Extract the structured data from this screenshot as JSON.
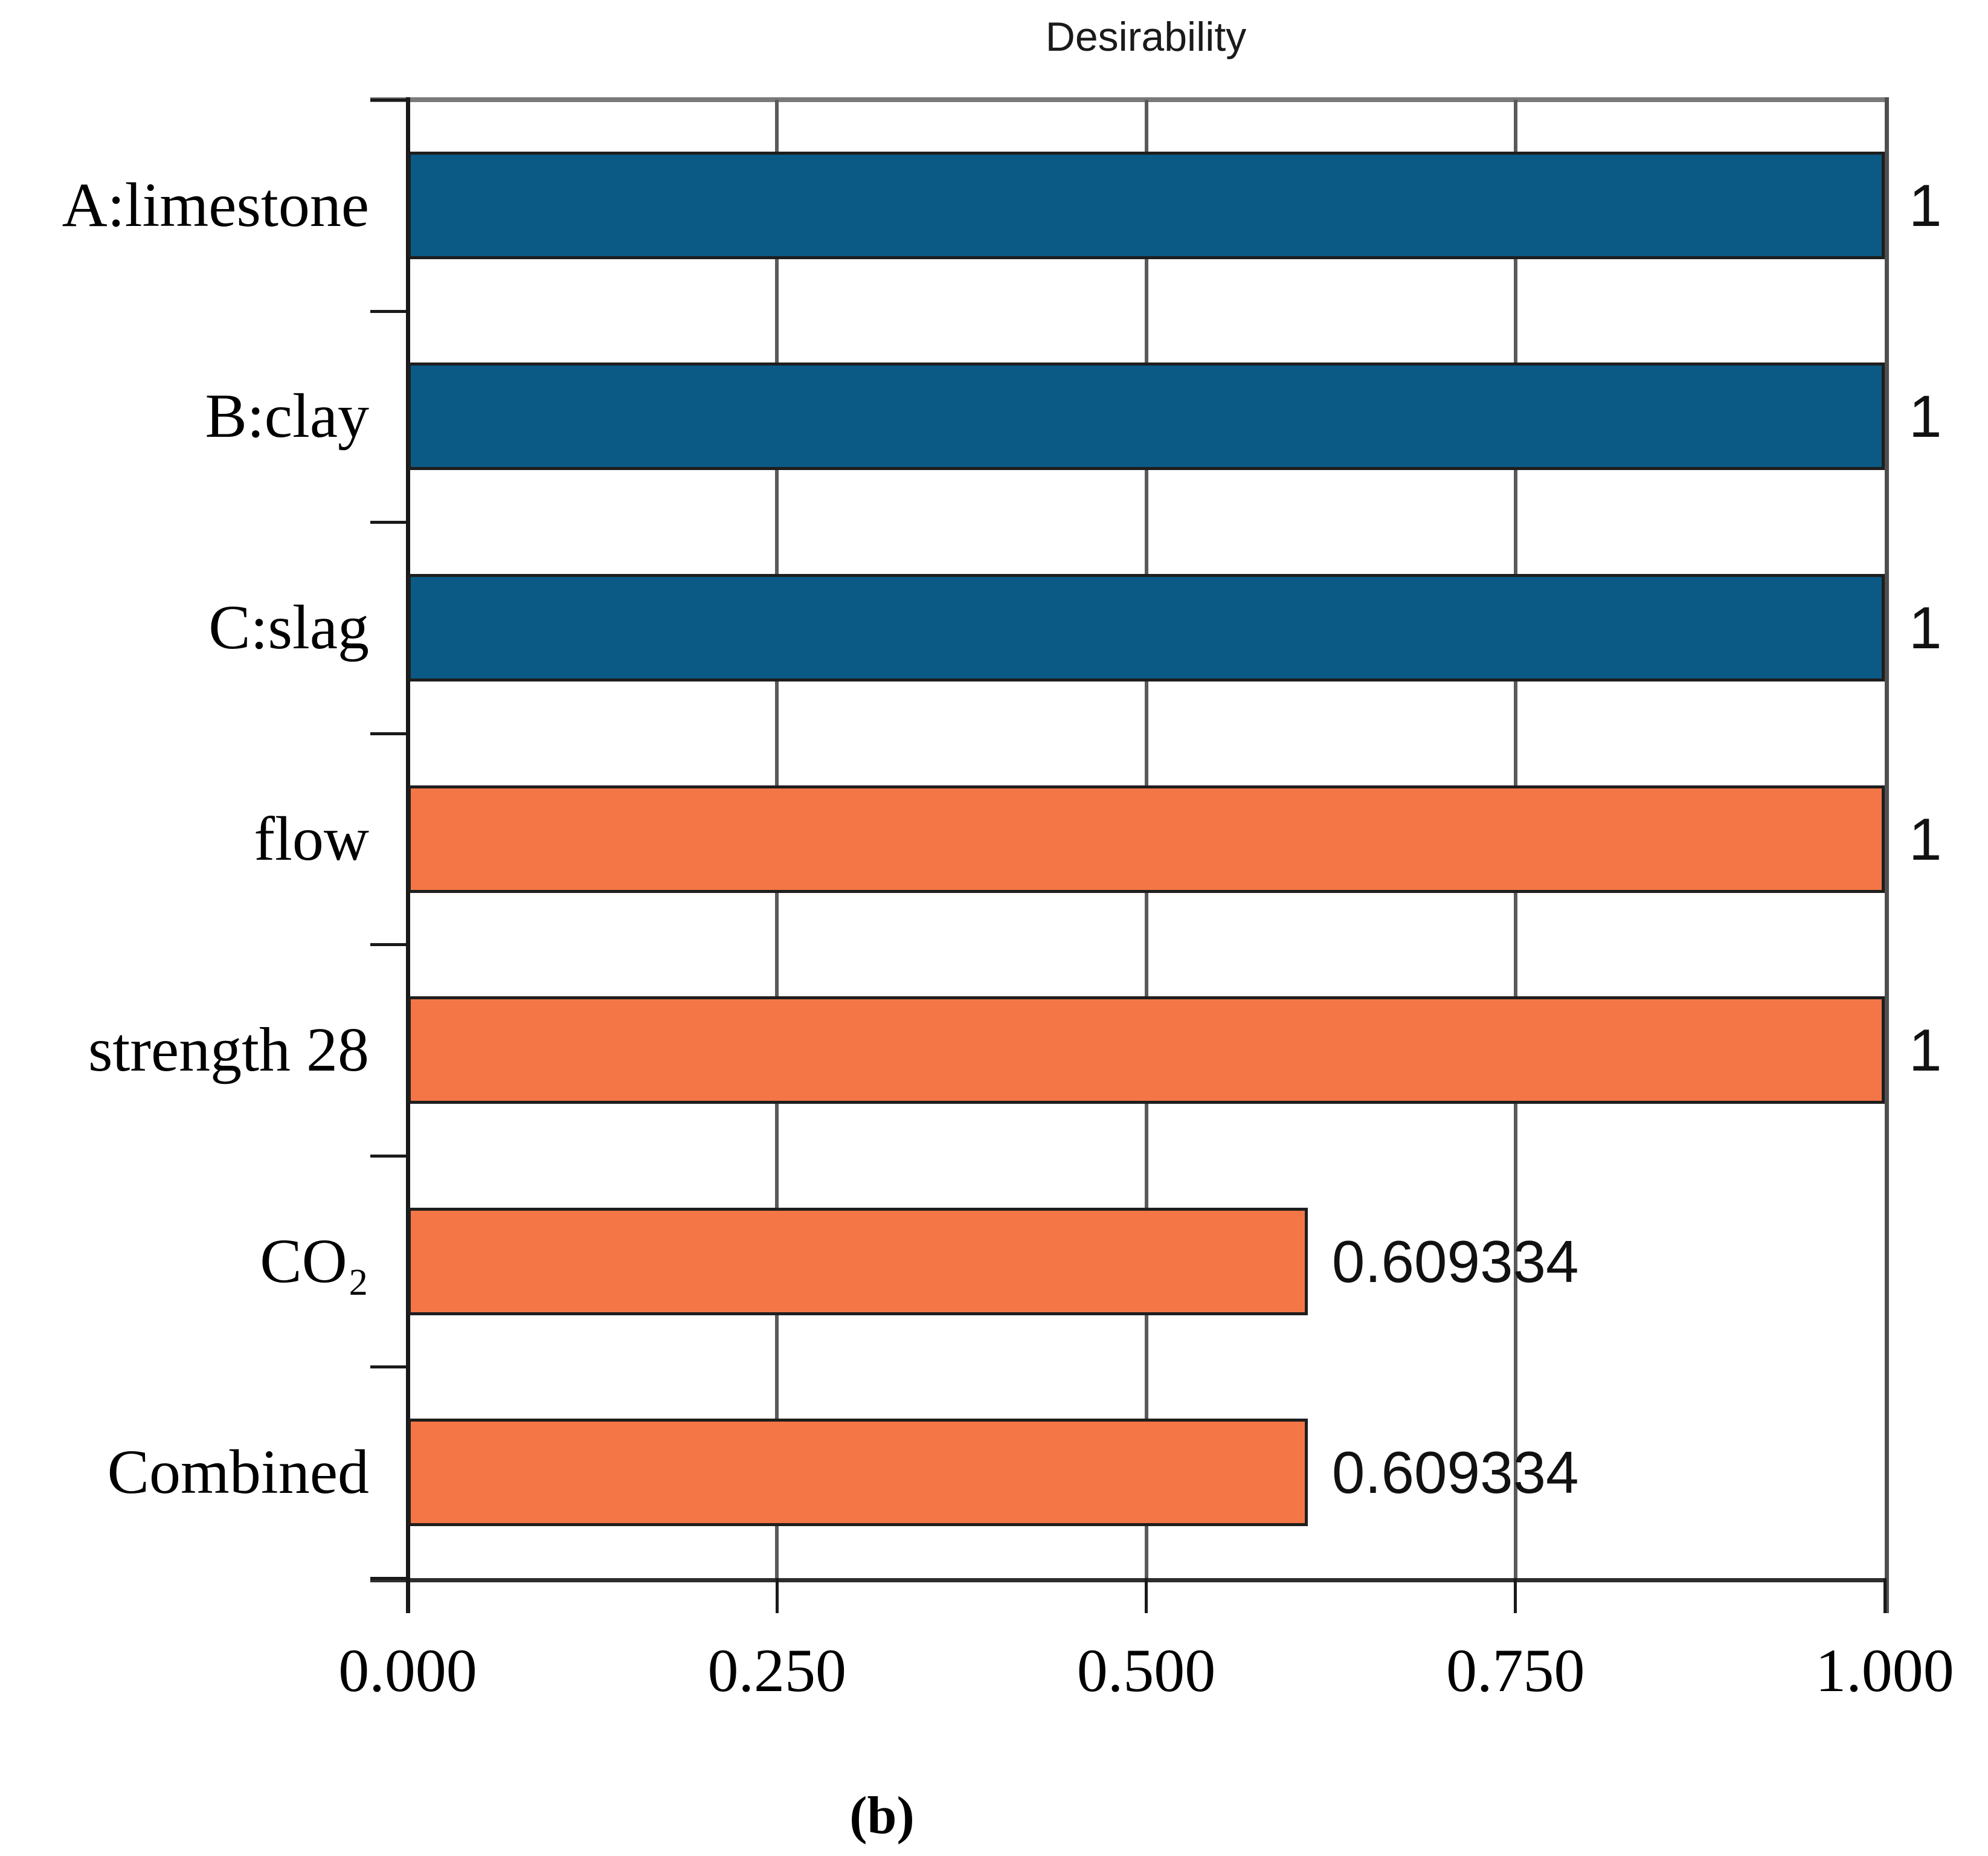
{
  "figure": {
    "title": "Desirability",
    "caption": "(b)"
  },
  "chart_data": {
    "type": "bar",
    "orientation": "horizontal",
    "title": "Desirability",
    "categories": [
      "A:limestone",
      "B:clay",
      "C:slag",
      "flow",
      "strength 28",
      "CO₂",
      "Combined"
    ],
    "values": [
      1,
      1,
      1,
      1,
      1,
      0.609334,
      0.609334
    ],
    "value_labels": [
      "1",
      "1",
      "1",
      "1",
      "1",
      "0.609334",
      "0.609334"
    ],
    "bar_colors": [
      "#0b5a85",
      "#0b5a85",
      "#0b5a85",
      "#f47646",
      "#f47646",
      "#f47646",
      "#f47646"
    ],
    "xlim": [
      0,
      1
    ],
    "x_ticks": [
      0,
      0.25,
      0.5,
      0.75,
      1
    ],
    "x_tick_labels": [
      "0.000",
      "0.250",
      "0.500",
      "0.750",
      "1.000"
    ],
    "gridlines": [
      0.25,
      0.5,
      0.75
    ],
    "grid": true,
    "legend": false,
    "xlabel": "",
    "ylabel": "",
    "colors": {
      "factor_bar": "#0b5a85",
      "response_bar": "#f47646",
      "bar_border": "#1e1e1e",
      "grid": "#5a5a5a",
      "axis": "#1a1a1a",
      "frame_top": "#7a7a7a",
      "frame_right": "#4f4f4f",
      "frame_bottom": "#2e2e2e",
      "text": "#000000"
    }
  }
}
